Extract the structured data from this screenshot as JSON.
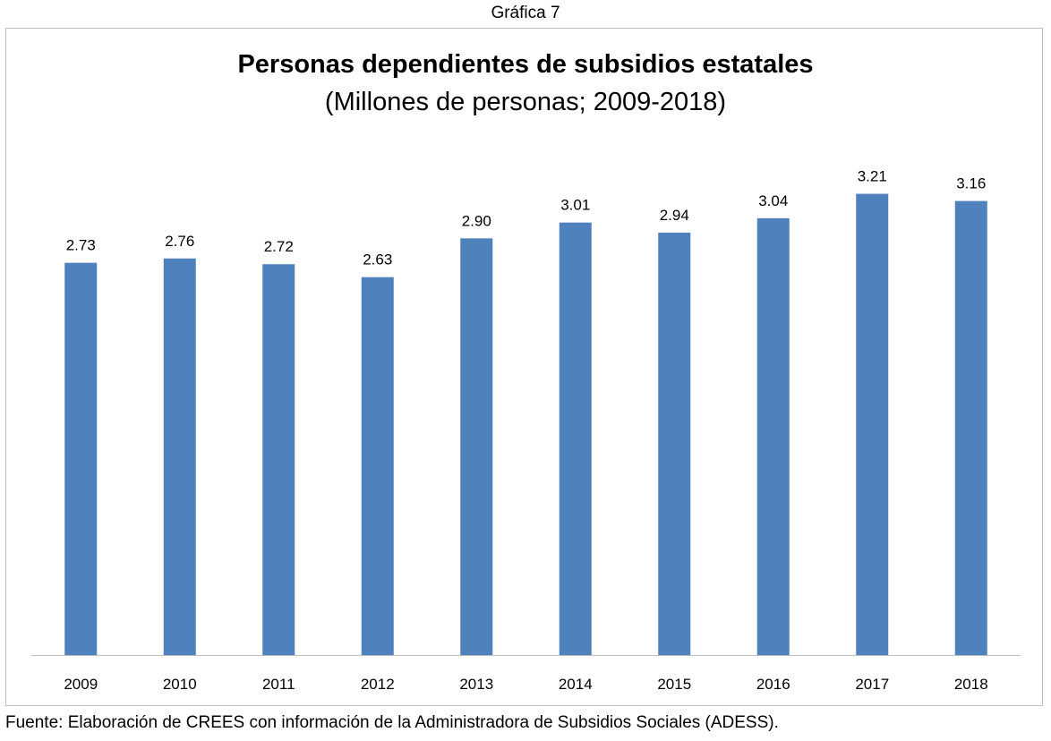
{
  "caption": "Gráfica 7",
  "source": "Fuente: Elaboración de CREES con información de la Administradora de Subsidios Sociales (ADESS).",
  "chart_data": {
    "type": "bar",
    "title": "Personas dependientes de subsidios estatales",
    "subtitle": "(Millones de personas; 2009-2018)",
    "categories": [
      "2009",
      "2010",
      "2011",
      "2012",
      "2013",
      "2014",
      "2015",
      "2016",
      "2017",
      "2018"
    ],
    "values": [
      2.73,
      2.76,
      2.72,
      2.63,
      2.9,
      3.01,
      2.94,
      3.04,
      3.21,
      3.16
    ],
    "value_labels": [
      "2.73",
      "2.76",
      "2.72",
      "2.63",
      "2.90",
      "3.01",
      "2.94",
      "3.04",
      "3.21",
      "3.16"
    ],
    "xlabel": "",
    "ylabel": "",
    "ylim": [
      0,
      3.5
    ],
    "grid": false,
    "legend": "none",
    "bar_color": "#4F81BD"
  }
}
